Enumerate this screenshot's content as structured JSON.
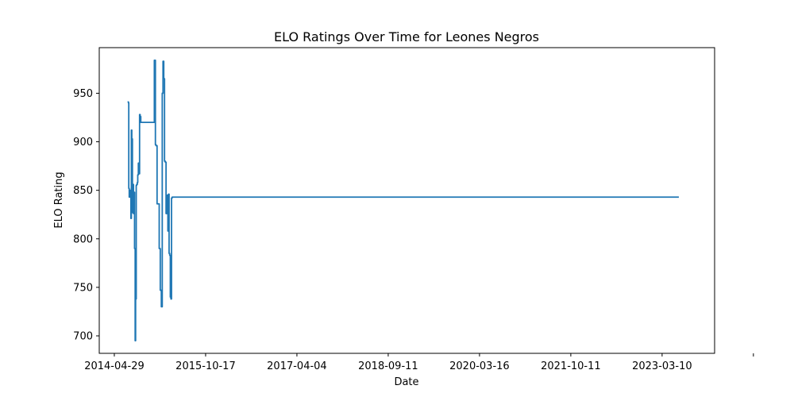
{
  "chart_data": {
    "type": "line",
    "title": "ELO Ratings Over Time for Leones Negros",
    "xlabel": "Date",
    "ylabel": "ELO Rating",
    "x_type": "date",
    "xlim": [
      "2014-01-20",
      "2025-02-15"
    ],
    "ylim": [
      682,
      997
    ],
    "x_ticks": [
      "2014-04-29",
      "2015-10-17",
      "2017-04-04",
      "2018-09-11",
      "2020-03-16",
      "2021-10-11",
      "2023-03-10",
      ""
    ],
    "y_ticks": [
      700,
      750,
      800,
      850,
      900,
      950
    ],
    "grid": false,
    "legend": "none",
    "line_color": "#1f77b4",
    "series": [
      {
        "x": [
          "2014-07-25",
          "2014-07-31",
          "2014-08-02",
          "2014-08-05",
          "2014-08-09",
          "2014-08-12",
          "2014-08-16",
          "2014-08-19",
          "2014-08-22",
          "2014-08-26",
          "2014-08-30",
          "2014-09-02",
          "2014-09-06",
          "2014-09-09",
          "2014-09-13",
          "2014-09-16",
          "2014-09-20",
          "2014-09-23",
          "2014-09-27",
          "2014-09-30",
          "2014-10-04",
          "2014-10-08",
          "2014-10-12",
          "2014-10-16",
          "2014-10-20",
          "2014-10-25",
          "2014-10-29",
          "2014-11-02",
          "2014-11-06",
          "2014-11-10",
          "2014-11-14",
          "2014-11-20",
          "2015-01-10",
          "2015-01-17",
          "2015-01-24",
          "2015-01-28",
          "2015-02-04",
          "2015-02-11",
          "2015-02-18",
          "2015-02-25",
          "2015-03-04",
          "2015-03-10",
          "2015-03-15",
          "2015-03-20",
          "2015-03-25",
          "2015-03-30",
          "2015-04-04",
          "2015-04-08",
          "2015-04-12",
          "2015-04-16",
          "2015-04-20",
          "2015-04-24",
          "2015-04-28",
          "2015-05-02",
          "2015-05-06",
          "2015-05-10",
          "2015-05-14",
          "2015-05-18",
          "2015-05-22",
          "2015-05-26",
          "2015-05-30",
          "2024-06-25"
        ],
        "y": [
          941,
          940,
          852,
          843,
          850,
          844,
          821,
          912,
          903,
          827,
          856,
          826,
          848,
          790,
          695,
          738,
          855,
          856,
          858,
          866,
          878,
          867,
          928,
          926,
          920,
          920,
          920,
          920,
          920,
          920,
          920,
          920,
          920,
          984,
          897,
          896,
          836,
          836,
          790,
          747,
          730,
          950,
          983,
          965,
          880,
          879,
          826,
          827,
          845,
          808,
          846,
          785,
          783,
          740,
          738,
          842,
          843,
          843,
          843,
          843,
          843,
          843
        ]
      }
    ]
  }
}
